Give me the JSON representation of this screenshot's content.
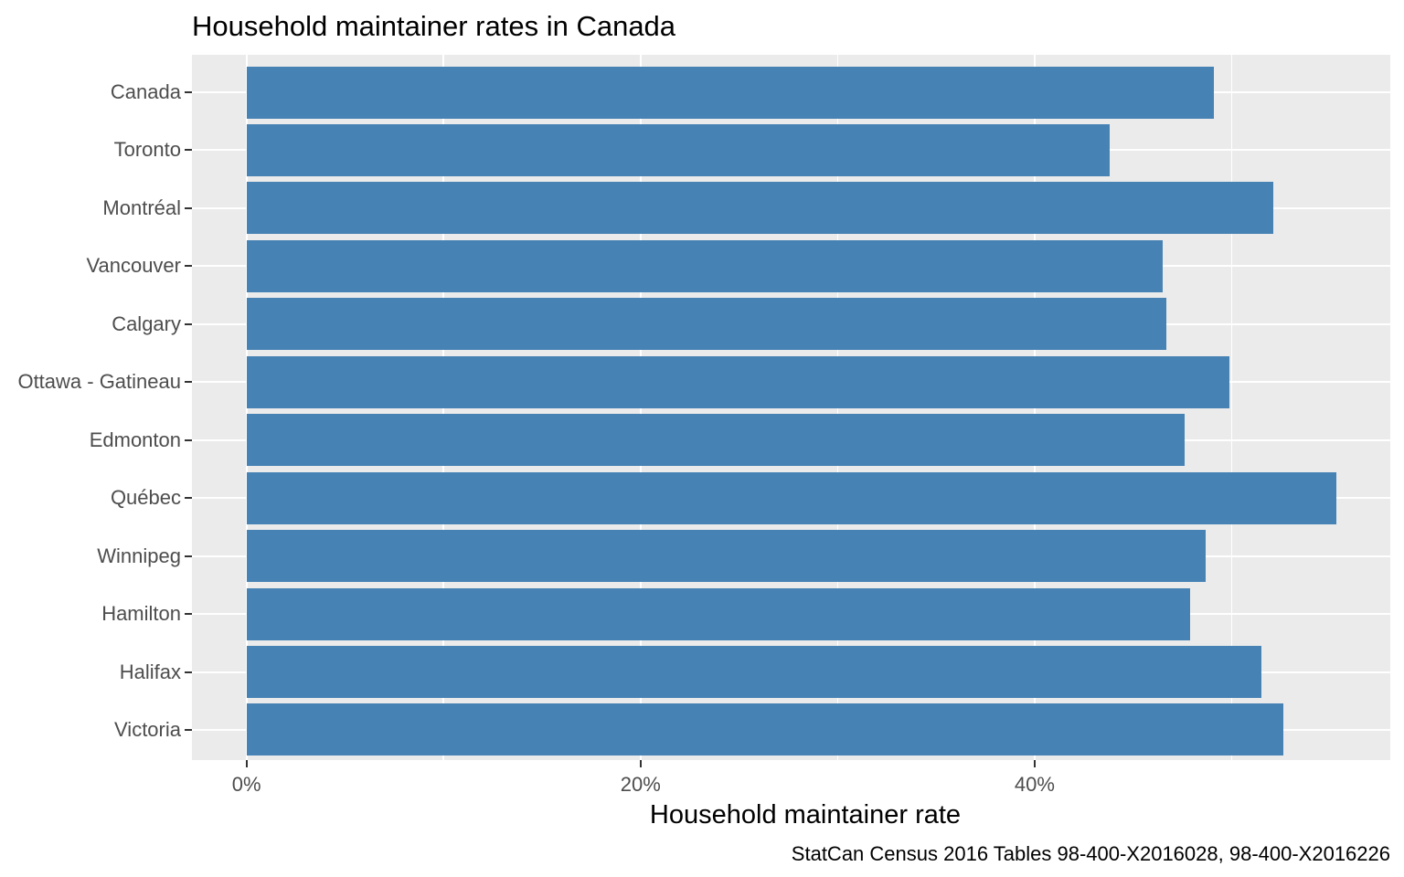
{
  "title": "Household maintainer rates in Canada",
  "chart_data": {
    "type": "bar",
    "orientation": "horizontal",
    "title": "Household maintainer rates in Canada",
    "xlabel": "Household maintainer rate",
    "ylabel": "",
    "caption": "StatCan Census 2016 Tables 98-400-X2016028, 98-400-X2016226",
    "categories": [
      "Canada",
      "Toronto",
      "Montréal",
      "Vancouver",
      "Calgary",
      "Ottawa - Gatineau",
      "Edmonton",
      "Québec",
      "Winnipeg",
      "Hamilton",
      "Halifax",
      "Victoria"
    ],
    "values": [
      49.1,
      43.8,
      52.1,
      46.5,
      46.7,
      49.9,
      47.6,
      55.3,
      48.7,
      47.9,
      51.5,
      52.6
    ],
    "value_unit": "%",
    "x_ticks": [
      {
        "value": 0,
        "label": "0%"
      },
      {
        "value": 20,
        "label": "20%"
      },
      {
        "value": 40,
        "label": "40%"
      }
    ],
    "x_minor_gridlines": [
      10,
      30,
      50
    ],
    "xlim": [
      -2.77,
      58.05
    ],
    "grid": "on",
    "legend": "none",
    "colors": {
      "bar": "#4682B4",
      "panel_background": "#EBEBEB",
      "gridline": "#FFFFFF",
      "tick_label": "#4D4D4D",
      "tick_mark": "#333333",
      "text": "#000000"
    }
  }
}
